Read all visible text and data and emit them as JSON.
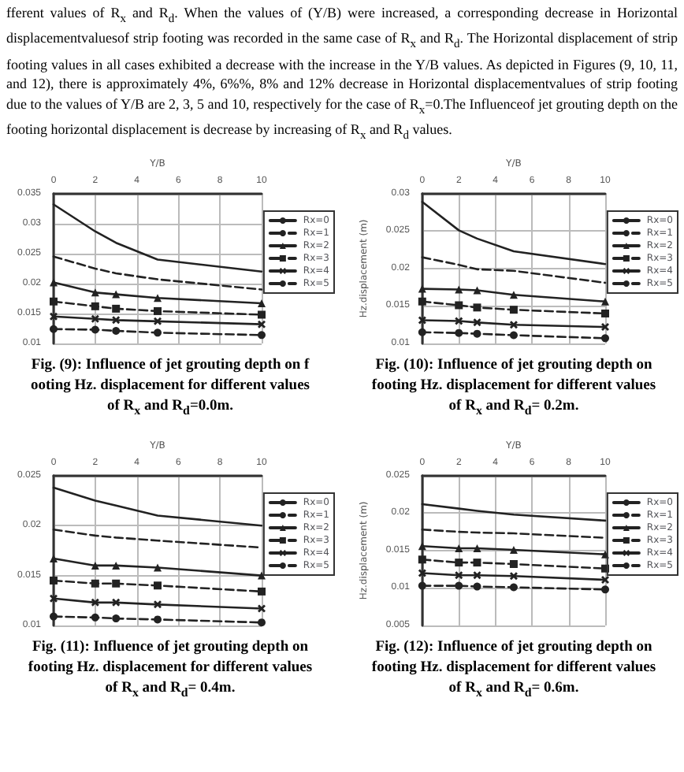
{
  "chart_data": [
    {
      "type": "line",
      "title": "Fig. (9): Influence of jet grouting depth on f ooting Hz. displacement for different values of R$_{x}$ and R$_{d}$=0.0m.",
      "annotations": [
        "fferent values of R$_{x}$ and R$_{d}$. When the values of (Y/B) were increased, a corresponding decrease in Horizontal displacementvaluesof strip footing was recorded in the same case of R$_{x}$ and R$_{d}$. The Horizontal displacement of strip footing values in all cases exhibited a decrease with the increase in the Y/B values. As depicted in Figures (9, 10, 11, and 12), there is approximately 4%, 6%%, 8%  and 12% decrease in Horizontal displacementvalues of strip footing due to the values of Y/B are 2, 3, 5 and 10, respectively for the case of R$_{x}$=0.The Influenceof jet grouting depth on the footing horizontal displacement is decrease by increasing of R$_{x}$ and R$_{d}$ values."
      ],
      "xlabel": "Y/B",
      "x": [
        0,
        2,
        3,
        5,
        10
      ],
      "xlim": [
        0,
        10
      ],
      "xticks": [
        0,
        2,
        4,
        6,
        8,
        10
      ],
      "ylim": [
        0.01,
        0.035
      ],
      "yticks": [
        0.01,
        0.015,
        0.02,
        0.025,
        0.03,
        0.035
      ],
      "grid": true,
      "legend": "right",
      "series": [
        {
          "name": "Rx=0",
          "color": "#222222",
          "marker": "none",
          "line_style": "solid",
          "values": [
            0.0332,
            0.0287,
            0.0268,
            0.024,
            0.022
          ]
        },
        {
          "name": "Rx=1",
          "color": "#222222",
          "marker": "none",
          "line_style": "dashed",
          "values": [
            0.0245,
            0.0225,
            0.0217,
            0.0207,
            0.019
          ]
        },
        {
          "name": "Rx=2",
          "color": "#222222",
          "marker": "triangle",
          "line_style": "solid",
          "values": [
            0.0202,
            0.0185,
            0.0182,
            0.0176,
            0.0167
          ]
        },
        {
          "name": "Rx=3",
          "color": "#222222",
          "marker": "square",
          "line_style": "dashed",
          "values": [
            0.017,
            0.0162,
            0.0158,
            0.0154,
            0.0148
          ]
        },
        {
          "name": "Rx=4",
          "color": "#222222",
          "marker": "cross",
          "line_style": "solid",
          "values": [
            0.0145,
            0.0141,
            0.0139,
            0.0137,
            0.0132
          ]
        },
        {
          "name": "Rx=5",
          "color": "#222222",
          "marker": "circle",
          "line_style": "dashed",
          "values": [
            0.0124,
            0.0123,
            0.0121,
            0.0118,
            0.0114
          ]
        }
      ]
    },
    {
      "type": "line",
      "title": "Fig. (10): Influence of jet grouting depth on footing Hz. displacement for different values of R$_{x}$ and R$_{d}$= 0.2m.",
      "xlabel": "Y/B",
      "ylabel": "Hz.displacement (m)",
      "x": [
        0,
        2,
        3,
        5,
        10
      ],
      "xlim": [
        0,
        10
      ],
      "xticks": [
        0,
        2,
        4,
        6,
        8,
        10
      ],
      "ylim": [
        0.01,
        0.03
      ],
      "yticks": [
        0.01,
        0.015,
        0.02,
        0.025,
        0.03
      ],
      "grid": true,
      "legend": "right",
      "series": [
        {
          "name": "Rx=0",
          "color": "#222222",
          "marker": "none",
          "line_style": "solid",
          "values": [
            0.0289,
            0.0251,
            0.024,
            0.0223,
            0.0206
          ]
        },
        {
          "name": "Rx=1",
          "color": "#222222",
          "marker": "none",
          "line_style": "dashed",
          "values": [
            0.0215,
            0.0205,
            0.0199,
            0.0197,
            0.0181
          ]
        },
        {
          "name": "Rx=2",
          "color": "#222222",
          "marker": "triangle",
          "line_style": "solid",
          "values": [
            0.0173,
            0.0172,
            0.0171,
            0.0165,
            0.0156
          ]
        },
        {
          "name": "Rx=3",
          "color": "#222222",
          "marker": "square",
          "line_style": "dashed",
          "values": [
            0.0156,
            0.0151,
            0.0148,
            0.0145,
            0.014
          ]
        },
        {
          "name": "Rx=4",
          "color": "#222222",
          "marker": "cross",
          "line_style": "solid",
          "values": [
            0.0131,
            0.013,
            0.0128,
            0.0125,
            0.0122
          ]
        },
        {
          "name": "Rx=5",
          "color": "#222222",
          "marker": "circle",
          "line_style": "dashed",
          "values": [
            0.0115,
            0.0114,
            0.0113,
            0.0111,
            0.0107
          ]
        }
      ]
    },
    {
      "type": "line",
      "title": "Fig. (11): Influence of jet grouting depth on footing  Hz. displacement for different values of R$_{x}$ and R$_{d}$= 0.4m.",
      "xlabel": "Y/B",
      "x": [
        0,
        2,
        3,
        5,
        10
      ],
      "xlim": [
        0,
        10
      ],
      "xticks": [
        0,
        2,
        4,
        6,
        8,
        10
      ],
      "ylim": [
        0.01,
        0.025
      ],
      "yticks": [
        0.01,
        0.015,
        0.02,
        0.025
      ],
      "grid": true,
      "legend": "right",
      "series": [
        {
          "name": "Rx=0",
          "color": "#222222",
          "marker": "none",
          "line_style": "solid",
          "values": [
            0.0238,
            0.0225,
            0.022,
            0.021,
            0.02
          ]
        },
        {
          "name": "Rx=1",
          "color": "#222222",
          "marker": "none",
          "line_style": "dashed",
          "values": [
            0.0196,
            0.019,
            0.0188,
            0.0185,
            0.0178
          ]
        },
        {
          "name": "Rx=2",
          "color": "#222222",
          "marker": "triangle",
          "line_style": "solid",
          "values": [
            0.0167,
            0.016,
            0.016,
            0.0158,
            0.015
          ]
        },
        {
          "name": "Rx=3",
          "color": "#222222",
          "marker": "square",
          "line_style": "dashed",
          "values": [
            0.0145,
            0.0142,
            0.0142,
            0.014,
            0.0134
          ]
        },
        {
          "name": "Rx=4",
          "color": "#222222",
          "marker": "cross",
          "line_style": "solid",
          "values": [
            0.0127,
            0.0123,
            0.0123,
            0.0121,
            0.0117
          ]
        },
        {
          "name": "Rx=5",
          "color": "#222222",
          "marker": "circle",
          "line_style": "dashed",
          "values": [
            0.0109,
            0.0108,
            0.0107,
            0.0106,
            0.0103
          ]
        }
      ]
    },
    {
      "type": "line",
      "title": "Fig. (12): Influence of jet grouting depth on footing Hz. displacement for different values of R$_{x}$ and R$_{d}$= 0.6m.",
      "xlabel": "Y/B",
      "ylabel": "Hz.displacement (m)",
      "x": [
        0,
        2,
        3,
        5,
        10
      ],
      "xlim": [
        0,
        10
      ],
      "xticks": [
        0,
        2,
        4,
        6,
        8,
        10
      ],
      "ylim": [
        0.005,
        0.025
      ],
      "yticks": [
        0.005,
        0.01,
        0.015,
        0.02,
        0.025
      ],
      "grid": true,
      "legend": "right",
      "series": [
        {
          "name": "Rx=0",
          "color": "#222222",
          "marker": "none",
          "line_style": "solid",
          "values": [
            0.0212,
            0.0206,
            0.0203,
            0.0198,
            0.019
          ]
        },
        {
          "name": "Rx=1",
          "color": "#222222",
          "marker": "none",
          "line_style": "dashed",
          "values": [
            0.0178,
            0.0175,
            0.0174,
            0.0173,
            0.0167
          ]
        },
        {
          "name": "Rx=2",
          "color": "#222222",
          "marker": "triangle",
          "line_style": "solid",
          "values": [
            0.0156,
            0.0153,
            0.0153,
            0.0151,
            0.0145
          ]
        },
        {
          "name": "Rx=3",
          "color": "#222222",
          "marker": "square",
          "line_style": "dashed",
          "values": [
            0.0138,
            0.0134,
            0.0134,
            0.0132,
            0.0126
          ]
        },
        {
          "name": "Rx=4",
          "color": "#222222",
          "marker": "cross",
          "line_style": "solid",
          "values": [
            0.012,
            0.0117,
            0.0117,
            0.0116,
            0.0111
          ]
        },
        {
          "name": "Rx=5",
          "color": "#222222",
          "marker": "circle",
          "line_style": "dashed",
          "values": [
            0.0103,
            0.0103,
            0.0102,
            0.0101,
            0.0098
          ]
        }
      ]
    }
  ]
}
